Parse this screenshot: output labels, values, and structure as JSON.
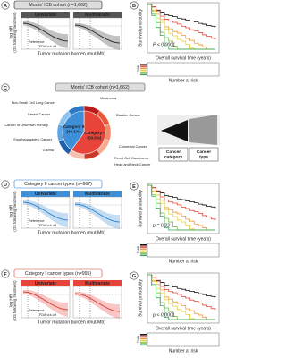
{
  "panels": {
    "A": {
      "letter": "A",
      "title": "Morris' ICB cohort (n=1,662)",
      "y_label": "log HR",
      "y_label_sub": "(OS following treatment)",
      "x_label": "Tumor mutation burden (mut/Mb)",
      "plots": [
        "Univariate",
        "Multivariate"
      ],
      "reference": "Reference",
      "cutoff": "FDA cut-off"
    },
    "B": {
      "letter": "B",
      "y_label": "Survival probability",
      "x_label": "Overall survival time (years)",
      "p_value": "P < 0.0001",
      "risk_label": "Number at risk",
      "strata_label": "TMB"
    },
    "C": {
      "letter": "C",
      "title": "Morris' ICB cohort (n=1,662)",
      "pie": {
        "labels": [
          "Category I (59.9%)",
          "Category II (40.1%)"
        ],
        "values": [
          59.9,
          40.1
        ],
        "colors": [
          "#e8443a",
          "#3d8fd8"
        ]
      },
      "cancer_types": [
        "Melanoma",
        "Non-Small Cell Lung Cancer",
        "Bladder Cancer",
        "Breast Cancer",
        "Cancer of Unknown Primary",
        "Colorectal Cancer",
        "Esophagogastric Cancer",
        "Glioma",
        "Renal Cell Carcinoma",
        "Head and Neck Cancer"
      ],
      "legend": [
        "Cancer category",
        "Cancer type"
      ]
    },
    "D": {
      "letter": "D",
      "title": "Category II cancer types (n=667)",
      "y_label": "log HR",
      "y_label_sub": "(OS following treatment)",
      "x_label": "Tumor mutation burden (mut/Mb)",
      "plots": [
        "Univariate",
        "Multivariate"
      ],
      "reference": "Reference",
      "cutoff": "FDA cut-off"
    },
    "E": {
      "letter": "E",
      "y_label": "Survival probability",
      "x_label": "Overall survival time (years)",
      "p_value": "p = 0.22",
      "risk_label": "Number at risk",
      "strata_label": "TMB"
    },
    "F": {
      "letter": "F",
      "title": "Category I cancer types (n=995)",
      "y_label": "log HR",
      "y_label_sub": "(OS following treatment)",
      "x_label": "Tumor mutation burden (mut/Mb)",
      "plots": [
        "Univariate",
        "Multivariate"
      ],
      "reference": "Reference",
      "cutoff": "FDA cut-off"
    },
    "G": {
      "letter": "G",
      "y_label": "Survival probability",
      "x_label": "Overall survival time (years)",
      "p_value": "p < 0.0001",
      "risk_label": "Number at risk",
      "strata_label": "TMB"
    }
  }
}
